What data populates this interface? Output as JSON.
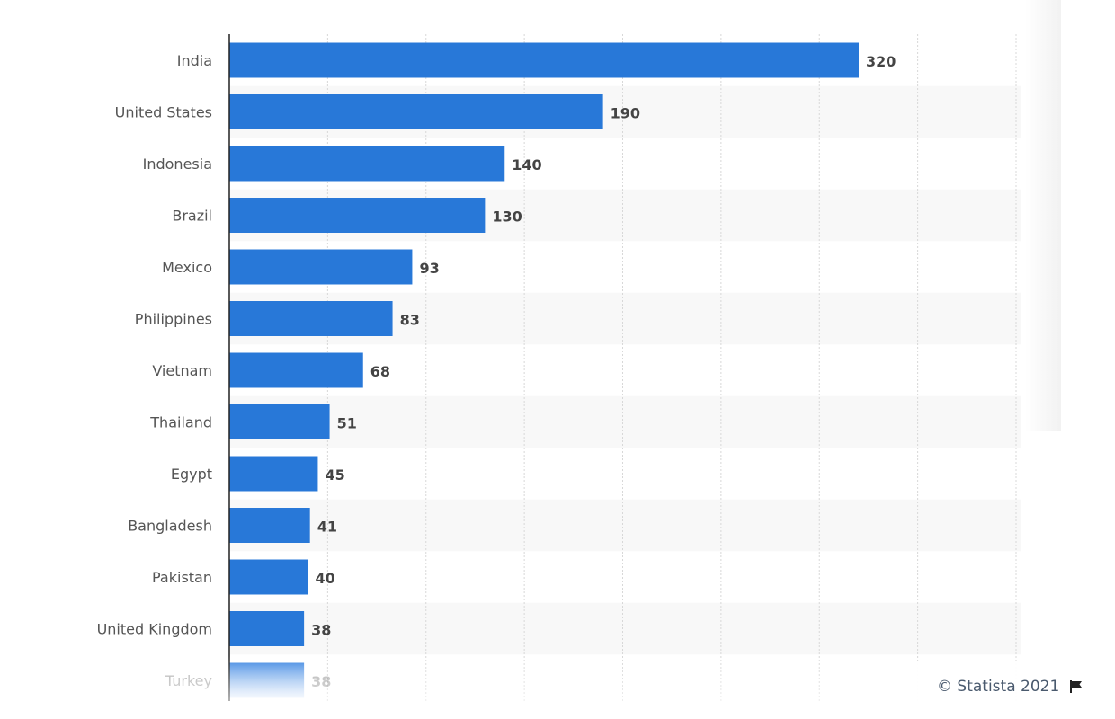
{
  "chart_data": {
    "type": "bar",
    "orientation": "horizontal",
    "categories": [
      "India",
      "United States",
      "Indonesia",
      "Brazil",
      "Mexico",
      "Philippines",
      "Vietnam",
      "Thailand",
      "Egypt",
      "Bangladesh",
      "Pakistan",
      "United Kingdom",
      "Turkey"
    ],
    "values": [
      320,
      190,
      140,
      130,
      93,
      83,
      68,
      51,
      45,
      41,
      40,
      38,
      38
    ],
    "title": "",
    "xlabel": "",
    "ylabel": "",
    "xlim": [
      0,
      400
    ],
    "grid": true,
    "bar_color": "#2878d8",
    "label_color": "#444444",
    "category_color": "#555555"
  },
  "credit": {
    "text": "© Statista 2021",
    "icon": "flag-icon"
  }
}
